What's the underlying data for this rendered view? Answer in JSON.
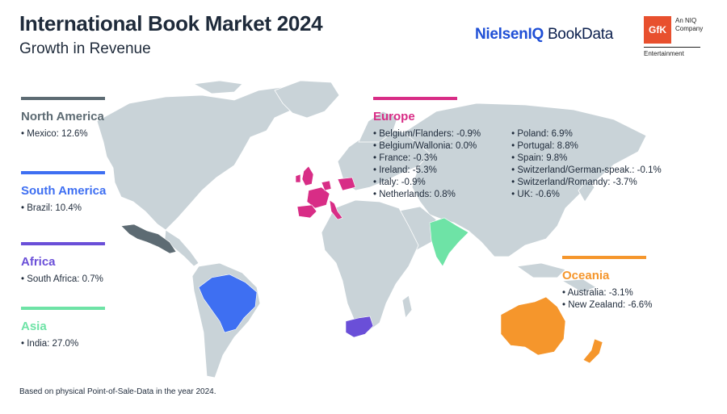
{
  "header": {
    "title": "International Book Market 2024",
    "subtitle": "Growth in Revenue"
  },
  "logos": {
    "niq_brand": "NielsenIQ",
    "niq_product": "BookData",
    "gfk_mark": "GfK",
    "gfk_tagline_1": "An NIQ",
    "gfk_tagline_2": "Company",
    "gfk_division": "Entertainment"
  },
  "colors": {
    "north_america": "#5d6b73",
    "south_america": "#3e6ff2",
    "africa": "#6a4fd8",
    "asia": "#6ee3a6",
    "europe": "#d82d86",
    "oceania": "#f5962c",
    "land": "#c9d3d8"
  },
  "regions": {
    "north_america": {
      "name": "North America",
      "items": [
        "Mexico: 12.6%"
      ]
    },
    "south_america": {
      "name": "South America",
      "items": [
        "Brazil: 10.4%"
      ]
    },
    "africa": {
      "name": "Africa",
      "items": [
        "South Africa: 0.7%"
      ]
    },
    "asia": {
      "name": "Asia",
      "items": [
        "India: 27.0%"
      ]
    },
    "europe": {
      "name": "Europe",
      "items_col1": [
        "Belgium/Flanders: -0.9%",
        "Belgium/Wallonia: 0.0%",
        "France: -0.3%",
        "Ireland: -5.3%",
        "Italy: -0.9%",
        "Netherlands: 0.8%"
      ],
      "items_col2": [
        "Poland: 6.9%",
        "Portugal: 8.8%",
        "Spain: 9.8%",
        "Switzerland/German-speak.: -0.1%",
        "Switzerland/Romandy: -3.7%",
        "UK: -0.6%"
      ]
    },
    "oceania": {
      "name": "Oceania",
      "items": [
        "Australia: -3.1%",
        "New Zealand: -6.6%"
      ]
    }
  },
  "footnote": "Based on physical Point-of-Sale-Data in the year 2024."
}
